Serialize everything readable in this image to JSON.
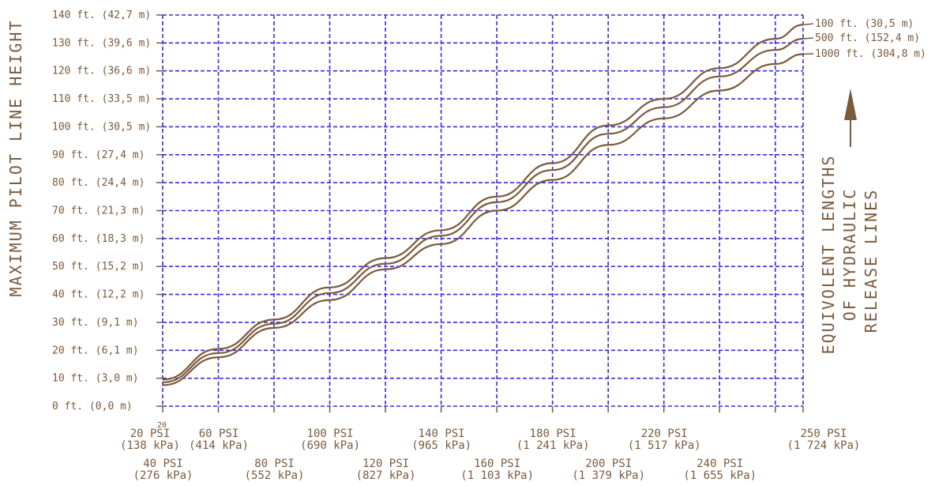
{
  "chart_data": {
    "type": "line",
    "ylabel": "MAXIMUM PILOT LINE HEIGHT",
    "legend_title": [
      "EQUIVOLENT LENGTHS",
      "OF HYDRAULIC",
      "RELEASE LINES"
    ],
    "corner_label": "20",
    "xlim": [
      20,
      250
    ],
    "ylim": [
      0,
      140
    ],
    "grid": true,
    "legend_placement": "right",
    "colors": {
      "grid": "#3a2bd8",
      "text": "#7a5a3c",
      "curve": "#7a5a3c"
    },
    "x_ticks": [
      {
        "value": 20,
        "psi": "20 PSI",
        "kpa": "(138 kPa)",
        "row": "upper"
      },
      {
        "value": 40,
        "psi": "40 PSI",
        "kpa": "(276 kPa)",
        "row": "lower"
      },
      {
        "value": 60,
        "psi": "60 PSI",
        "kpa": "(414 kPa)",
        "row": "upper"
      },
      {
        "value": 80,
        "psi": "80 PSI",
        "kpa": "(552 kPa)",
        "row": "lower"
      },
      {
        "value": 100,
        "psi": "100 PSI",
        "kpa": "(690 kPa)",
        "row": "upper"
      },
      {
        "value": 120,
        "psi": "120 PSI",
        "kpa": "(827 kPa)",
        "row": "lower"
      },
      {
        "value": 140,
        "psi": "140 PSI",
        "kpa": "(965 kPa)",
        "row": "upper"
      },
      {
        "value": 160,
        "psi": "160 PSI",
        "kpa": "(1 103 kPa)",
        "row": "lower"
      },
      {
        "value": 180,
        "psi": "180 PSI",
        "kpa": "(1 241 kPa)",
        "row": "upper"
      },
      {
        "value": 200,
        "psi": "200 PSI",
        "kpa": "(1 379 kPa)",
        "row": "lower"
      },
      {
        "value": 220,
        "psi": "220 PSI",
        "kpa": "(1 517 kPa)",
        "row": "upper"
      },
      {
        "value": 240,
        "psi": "240 PSI",
        "kpa": "(1 655 kPa)",
        "row": "lower"
      },
      {
        "value": 250,
        "psi": "250 PSI",
        "kpa": "(1 724 kPa)",
        "row": "upper"
      }
    ],
    "y_ticks": [
      {
        "value": 0,
        "label": "0 ft. (0,0 m)"
      },
      {
        "value": 10,
        "label": "10 ft. (3,0 m)"
      },
      {
        "value": 20,
        "label": "20 ft. (6,1 m)"
      },
      {
        "value": 30,
        "label": "30 ft. (9,1 m)"
      },
      {
        "value": 40,
        "label": "40 ft. (12,2 m)"
      },
      {
        "value": 50,
        "label": "50 ft. (15,2 m)"
      },
      {
        "value": 60,
        "label": "60 ft. (18,3 m)"
      },
      {
        "value": 70,
        "label": "70 ft. (21,3 m)"
      },
      {
        "value": 80,
        "label": "80 ft. (24,4 m)"
      },
      {
        "value": 90,
        "label": "90 ft. (27,4 m)"
      },
      {
        "value": 100,
        "label": "100 ft. (30,5 m)"
      },
      {
        "value": 110,
        "label": "110 ft. (33,5 m)"
      },
      {
        "value": 120,
        "label": "120 ft. (36,6 m)"
      },
      {
        "value": 130,
        "label": "130 ft. (39,6 m)"
      },
      {
        "value": 140,
        "label": "140 ft. (42,7 m)"
      }
    ],
    "series": [
      {
        "name": "100 ft. (30,5 m)",
        "x": [
          20,
          40,
          60,
          80,
          100,
          120,
          140,
          160,
          180,
          200,
          220,
          240,
          250
        ],
        "y": [
          9.5,
          20.5,
          31.0,
          42.5,
          53.0,
          63.0,
          75.0,
          87.0,
          100.5,
          110.0,
          121.0,
          131.5,
          136.5
        ]
      },
      {
        "name": "500 ft. (152,4 m)",
        "x": [
          20,
          40,
          60,
          80,
          100,
          120,
          140,
          160,
          180,
          200,
          220,
          240,
          250
        ],
        "y": [
          8.5,
          19.0,
          29.5,
          40.5,
          51.0,
          61.0,
          73.0,
          84.5,
          97.5,
          107.0,
          118.0,
          127.5,
          131.5
        ]
      },
      {
        "name": "1000 ft. (304,8 m)",
        "x": [
          20,
          40,
          60,
          80,
          100,
          120,
          140,
          160,
          180,
          200,
          220,
          240,
          250
        ],
        "y": [
          7.5,
          17.5,
          28.0,
          38.0,
          49.0,
          58.0,
          70.0,
          81.0,
          93.5,
          103.0,
          113.0,
          122.5,
          126.0
        ]
      }
    ]
  }
}
